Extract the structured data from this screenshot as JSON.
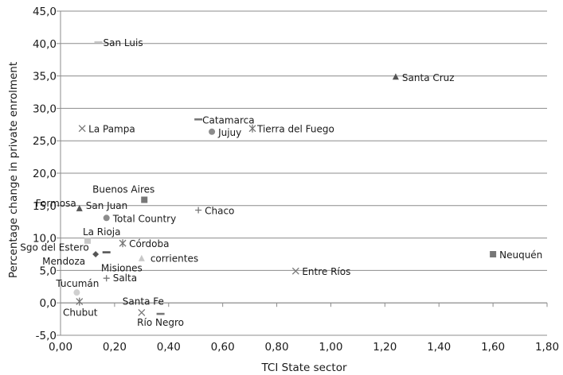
{
  "chart_data": {
    "type": "scatter",
    "title": "",
    "xlabel": "TCI State sector",
    "ylabel": "Percentage change in private enrolment",
    "xlim": [
      0,
      1.8
    ],
    "ylim": [
      -5,
      45
    ],
    "grid": "horizontal",
    "x_ticks": [
      "0,00",
      "0,20",
      "0,40",
      "0,60",
      "0,80",
      "1,00",
      "1,20",
      "1,40",
      "1,60",
      "1,80"
    ],
    "y_ticks": [
      "-5,0",
      "0,0",
      "5,0",
      "10,0",
      "15,0",
      "20,0",
      "25,0",
      "30,0",
      "35,0",
      "40,0",
      "45,0"
    ],
    "points": [
      {
        "label": "San Luis",
        "x": 0.14,
        "y": 40.2,
        "marker": "dash",
        "color": "#c8c8c8"
      },
      {
        "label": "Santa Cruz",
        "x": 1.24,
        "y": 34.8,
        "marker": "triangle",
        "color": "#555555"
      },
      {
        "label": "Catamarca",
        "x": 0.51,
        "y": 28.3,
        "marker": "dash",
        "color": "#777777"
      },
      {
        "label": "La Pampa",
        "x": 0.08,
        "y": 26.9,
        "marker": "x",
        "color": "#777777"
      },
      {
        "label": "Tierra del Fuego",
        "x": 0.71,
        "y": 26.9,
        "marker": "star",
        "color": "#777777"
      },
      {
        "label": "Jujuy",
        "x": 0.56,
        "y": 26.4,
        "marker": "circle",
        "color": "#8c8c8c"
      },
      {
        "label": "Buenos Aires",
        "x": 0.31,
        "y": 15.9,
        "marker": "square",
        "color": "#777777"
      },
      {
        "label": "Formosa",
        "x": 0.07,
        "y": 14.5,
        "marker": "triangle",
        "color": "#555555"
      },
      {
        "label": "San Juan",
        "x": 0.07,
        "y": 14.5,
        "marker": "triangle",
        "color": "#555555"
      },
      {
        "label": "Chaco",
        "x": 0.51,
        "y": 14.3,
        "marker": "plus",
        "color": "#777777"
      },
      {
        "label": "Total Country",
        "x": 0.17,
        "y": 13.1,
        "marker": "circle",
        "color": "#8c8c8c"
      },
      {
        "label": "La Rioja",
        "x": 0.1,
        "y": 9.6,
        "marker": "square",
        "color": "#c8c8c8"
      },
      {
        "label": "Córdoba",
        "x": 0.23,
        "y": 9.2,
        "marker": "star",
        "color": "#777777"
      },
      {
        "label": "Sgo del Estero",
        "x": 0.17,
        "y": 7.8,
        "marker": "dash",
        "color": "#555555"
      },
      {
        "label": "Mendoza",
        "x": 0.13,
        "y": 7.5,
        "marker": "diamond",
        "color": "#555555"
      },
      {
        "label": "Neuquén",
        "x": 1.6,
        "y": 7.5,
        "marker": "square",
        "color": "#777777"
      },
      {
        "label": "corrientes",
        "x": 0.3,
        "y": 6.8,
        "marker": "triangle",
        "color": "#c8c8c8"
      },
      {
        "label": "Misiones",
        "x": 0.3,
        "y": 6.8,
        "marker": "triangle",
        "color": "#c8c8c8"
      },
      {
        "label": "Entre Ríos",
        "x": 0.87,
        "y": 4.9,
        "marker": "x",
        "color": "#777777"
      },
      {
        "label": "Salta",
        "x": 0.17,
        "y": 3.8,
        "marker": "plus",
        "color": "#777777"
      },
      {
        "label": "Tucumán",
        "x": 0.06,
        "y": 1.6,
        "marker": "circle",
        "color": "#d0d0d0"
      },
      {
        "label": "Chubut",
        "x": 0.07,
        "y": 0.2,
        "marker": "star",
        "color": "#777777"
      },
      {
        "label": "Santa Fe",
        "x": 0.3,
        "y": -1.5,
        "marker": "x",
        "color": "#777777"
      },
      {
        "label": "Río Negro",
        "x": 0.37,
        "y": -1.7,
        "marker": "dash",
        "color": "#777777"
      }
    ]
  }
}
